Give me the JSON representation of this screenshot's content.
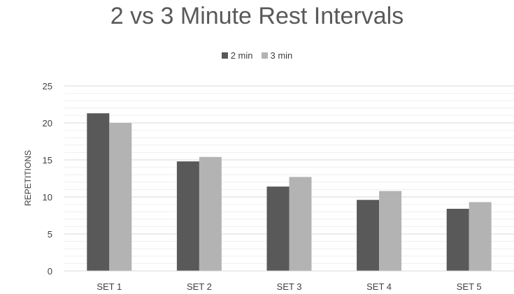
{
  "chart_data": {
    "type": "bar",
    "title": "2 vs 3 Minute Rest Intervals",
    "xlabel": "",
    "ylabel": "REPETITIONS",
    "categories": [
      "SET 1",
      "SET 2",
      "SET 3",
      "SET 4",
      "SET 5"
    ],
    "series": [
      {
        "name": "2 min",
        "color": "#595959",
        "values": [
          21.3,
          14.8,
          11.4,
          9.6,
          8.4
        ]
      },
      {
        "name": "3 min",
        "color": "#b3b3b3",
        "values": [
          20.0,
          15.4,
          12.7,
          10.8,
          9.3
        ]
      }
    ],
    "ylim": [
      0,
      25
    ],
    "yticks": [
      "0",
      "5",
      "10",
      "15",
      "20",
      "25"
    ],
    "grid": true,
    "legend_position": "top"
  }
}
